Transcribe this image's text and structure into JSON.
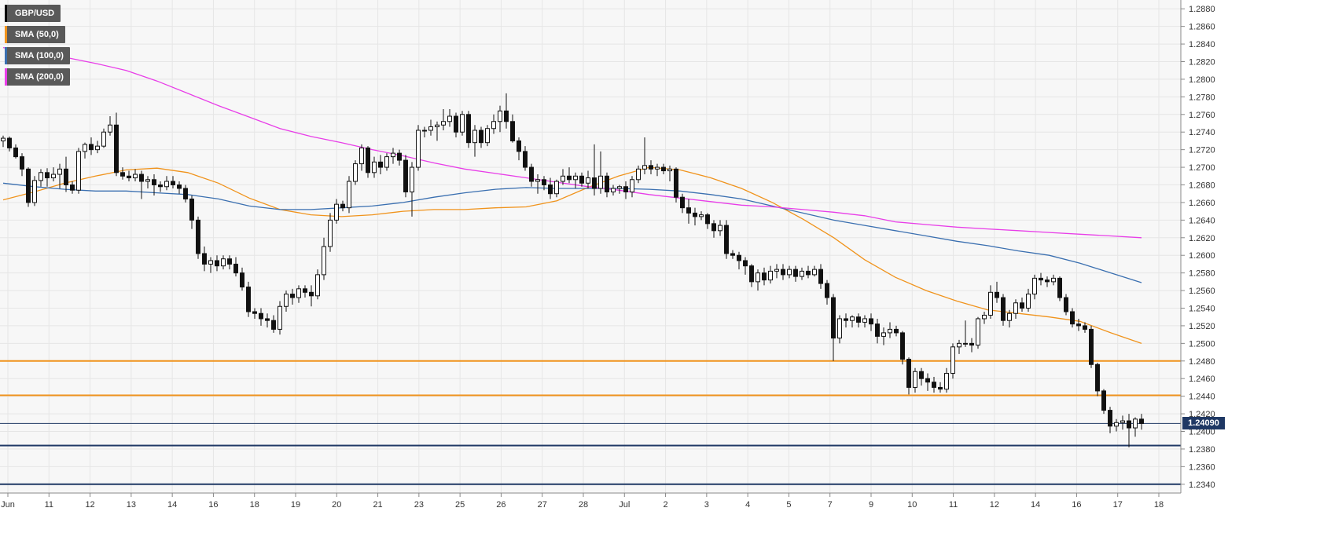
{
  "chart_data": {
    "type": "candlestick",
    "symbol": "GBP/USD",
    "ylim": [
      1.233,
      1.289
    ],
    "y_ticks": [
      "1.2880",
      "1.2860",
      "1.2840",
      "1.2820",
      "1.2800",
      "1.2780",
      "1.2760",
      "1.2740",
      "1.2720",
      "1.2700",
      "1.2680",
      "1.2660",
      "1.2640",
      "1.2620",
      "1.2600",
      "1.2580",
      "1.2560",
      "1.2540",
      "1.2520",
      "1.2500",
      "1.2480",
      "1.2460",
      "1.2440",
      "1.2420",
      "1.2400",
      "1.2380",
      "1.2360",
      "1.2340"
    ],
    "x_ticks": [
      "Jun",
      "11",
      "12",
      "13",
      "14",
      "16",
      "18",
      "19",
      "20",
      "21",
      "23",
      "25",
      "26",
      "27",
      "28",
      "Jul",
      "2",
      "3",
      "4",
      "5",
      "7",
      "9",
      "10",
      "11",
      "12",
      "14",
      "16",
      "17",
      "18"
    ],
    "last_price": "1.24090",
    "last_price_value": 1.2409,
    "last_price_color": "#1f3864",
    "legend": [
      {
        "label": "GBP/USD",
        "color": "#000000"
      },
      {
        "label": "SMA (50,0)",
        "color": "#f0931c"
      },
      {
        "label": "SMA (100,0)",
        "color": "#3a6fb0"
      },
      {
        "label": "SMA (200,0)",
        "color": "#e83ee8"
      }
    ],
    "horizontal_levels": [
      {
        "value": 1.248,
        "color": "#f0931c"
      },
      {
        "value": 1.2441,
        "color": "#f0931c"
      },
      {
        "value": 1.2384,
        "color": "#1f3864"
      },
      {
        "value": 1.234,
        "color": "#1f3864"
      }
    ],
    "series": [
      {
        "name": "SMA (50,0)",
        "color": "#f0931c",
        "values": [
          1.2663,
          1.2672,
          1.2682,
          1.269,
          1.2697,
          1.2699,
          1.2694,
          1.2682,
          1.2665,
          1.2652,
          1.2646,
          1.2644,
          1.2646,
          1.265,
          1.2652,
          1.2652,
          1.2654,
          1.2655,
          1.2662,
          1.2677,
          1.269,
          1.27,
          1.2697,
          1.2688,
          1.2676,
          1.266,
          1.2641,
          1.262,
          1.2595,
          1.2575,
          1.256,
          1.2548,
          1.2538,
          1.2534,
          1.253,
          1.2525,
          1.2512,
          1.25
        ]
      },
      {
        "name": "SMA (100,0)",
        "color": "#3a6fb0",
        "values": [
          1.2682,
          1.2678,
          1.2675,
          1.2673,
          1.2673,
          1.2671,
          1.2669,
          1.2664,
          1.2656,
          1.2652,
          1.2652,
          1.2654,
          1.2656,
          1.266,
          1.2666,
          1.2671,
          1.2675,
          1.2677,
          1.2676,
          1.2676,
          1.2676,
          1.2675,
          1.2673,
          1.2669,
          1.2664,
          1.2656,
          1.2648,
          1.264,
          1.2634,
          1.2628,
          1.2622,
          1.2616,
          1.2611,
          1.2605,
          1.26,
          1.2591,
          1.258,
          1.2569
        ]
      },
      {
        "name": "SMA (200,0)",
        "color": "#e83ee8",
        "values": [
          1.2836,
          1.283,
          1.2825,
          1.2818,
          1.281,
          1.2798,
          1.2784,
          1.277,
          1.2757,
          1.2744,
          1.2735,
          1.2728,
          1.272,
          1.2713,
          1.2705,
          1.2698,
          1.2693,
          1.2688,
          1.2683,
          1.2678,
          1.2674,
          1.2669,
          1.2665,
          1.2661,
          1.2657,
          1.2655,
          1.2652,
          1.2649,
          1.2645,
          1.2638,
          1.2635,
          1.2632,
          1.263,
          1.2628,
          1.2626,
          1.2624,
          1.2622,
          1.262
        ]
      }
    ],
    "candles": [
      [
        1.273,
        1.2736,
        1.2723,
        1.2733
      ],
      [
        1.2733,
        1.2735,
        1.2718,
        1.2722
      ],
      [
        1.2722,
        1.2726,
        1.271,
        1.2712
      ],
      [
        1.2712,
        1.2716,
        1.269,
        1.2698
      ],
      [
        1.2698,
        1.27,
        1.2655,
        1.266
      ],
      [
        1.266,
        1.269,
        1.2656,
        1.2685
      ],
      [
        1.2685,
        1.2698,
        1.2678,
        1.2694
      ],
      [
        1.2694,
        1.2699,
        1.2678,
        1.2688
      ],
      [
        1.2688,
        1.27,
        1.2684,
        1.2692
      ],
      [
        1.2692,
        1.2704,
        1.2676,
        1.2698
      ],
      [
        1.2698,
        1.2712,
        1.2672,
        1.268
      ],
      [
        1.268,
        1.2684,
        1.267,
        1.2674
      ],
      [
        1.2674,
        1.2722,
        1.267,
        1.2718
      ],
      [
        1.2718,
        1.2728,
        1.271,
        1.2726
      ],
      [
        1.2726,
        1.2734,
        1.2714,
        1.272
      ],
      [
        1.272,
        1.273,
        1.2716,
        1.2724
      ],
      [
        1.2724,
        1.2744,
        1.2722,
        1.274
      ],
      [
        1.274,
        1.2758,
        1.2736,
        1.2748
      ],
      [
        1.2748,
        1.2762,
        1.269,
        1.2694
      ],
      [
        1.2694,
        1.27,
        1.2686,
        1.269
      ],
      [
        1.269,
        1.2696,
        1.2684,
        1.2688
      ],
      [
        1.2688,
        1.2698,
        1.2684,
        1.2692
      ],
      [
        1.2692,
        1.2696,
        1.2664,
        1.2684
      ],
      [
        1.2684,
        1.269,
        1.2676,
        1.2686
      ],
      [
        1.2686,
        1.2692,
        1.2668,
        1.268
      ],
      [
        1.268,
        1.2684,
        1.2672,
        1.2678
      ],
      [
        1.2678,
        1.269,
        1.2674,
        1.2684
      ],
      [
        1.2684,
        1.269,
        1.2676,
        1.268
      ],
      [
        1.268,
        1.2684,
        1.267,
        1.2676
      ],
      [
        1.2676,
        1.268,
        1.266,
        1.2664
      ],
      [
        1.2664,
        1.2668,
        1.263,
        1.264
      ],
      [
        1.264,
        1.2644,
        1.2596,
        1.2602
      ],
      [
        1.2602,
        1.261,
        1.2582,
        1.259
      ],
      [
        1.259,
        1.2598,
        1.258,
        1.2594
      ],
      [
        1.2594,
        1.26,
        1.2582,
        1.2588
      ],
      [
        1.2588,
        1.26,
        1.2584,
        1.2596
      ],
      [
        1.2596,
        1.26,
        1.2584,
        1.259
      ],
      [
        1.259,
        1.2598,
        1.2576,
        1.258
      ],
      [
        1.258,
        1.2586,
        1.256,
        1.2564
      ],
      [
        1.2564,
        1.257,
        1.253,
        1.2536
      ],
      [
        1.2536,
        1.254,
        1.2528,
        1.2534
      ],
      [
        1.2534,
        1.254,
        1.252,
        1.2528
      ],
      [
        1.2528,
        1.2534,
        1.2518,
        1.2526
      ],
      [
        1.2526,
        1.2532,
        1.2512,
        1.2516
      ],
      [
        1.2516,
        1.2548,
        1.251,
        1.2542
      ],
      [
        1.2542,
        1.256,
        1.2536,
        1.2556
      ],
      [
        1.2556,
        1.2562,
        1.2544,
        1.2552
      ],
      [
        1.2552,
        1.2566,
        1.2546,
        1.2562
      ],
      [
        1.2562,
        1.2566,
        1.2552,
        1.2558
      ],
      [
        1.2558,
        1.2566,
        1.2542,
        1.2554
      ],
      [
        1.2554,
        1.2584,
        1.255,
        1.2578
      ],
      [
        1.2578,
        1.262,
        1.2572,
        1.261
      ],
      [
        1.261,
        1.2648,
        1.2604,
        1.264
      ],
      [
        1.264,
        1.2664,
        1.2636,
        1.2658
      ],
      [
        1.2658,
        1.2662,
        1.265,
        1.2654
      ],
      [
        1.2654,
        1.269,
        1.2648,
        1.2684
      ],
      [
        1.2684,
        1.2708,
        1.268,
        1.2704
      ],
      [
        1.2704,
        1.2726,
        1.2696,
        1.2722
      ],
      [
        1.2722,
        1.2724,
        1.2688,
        1.2694
      ],
      [
        1.2694,
        1.2712,
        1.2688,
        1.2706
      ],
      [
        1.2706,
        1.2714,
        1.2692,
        1.27
      ],
      [
        1.27,
        1.2716,
        1.2696,
        1.2712
      ],
      [
        1.2712,
        1.2722,
        1.2704,
        1.2716
      ],
      [
        1.2716,
        1.272,
        1.2702,
        1.2708
      ],
      [
        1.2708,
        1.2714,
        1.2666,
        1.2672
      ],
      [
        1.2672,
        1.2706,
        1.2644,
        1.27
      ],
      [
        1.27,
        1.2748,
        1.2696,
        1.2742
      ],
      [
        1.2742,
        1.2746,
        1.2734,
        1.2742
      ],
      [
        1.2742,
        1.2754,
        1.2736,
        1.2746
      ],
      [
        1.2746,
        1.2752,
        1.273,
        1.2748
      ],
      [
        1.2748,
        1.2766,
        1.2742,
        1.2752
      ],
      [
        1.2752,
        1.2766,
        1.2746,
        1.2758
      ],
      [
        1.2758,
        1.2762,
        1.2734,
        1.274
      ],
      [
        1.274,
        1.2764,
        1.2736,
        1.276
      ],
      [
        1.276,
        1.2764,
        1.2722,
        1.2728
      ],
      [
        1.2728,
        1.2748,
        1.2712,
        1.2742
      ],
      [
        1.2742,
        1.2746,
        1.2722,
        1.2728
      ],
      [
        1.2728,
        1.2748,
        1.2724,
        1.2744
      ],
      [
        1.2744,
        1.276,
        1.2738,
        1.2752
      ],
      [
        1.2752,
        1.277,
        1.274,
        1.2764
      ],
      [
        1.2764,
        1.2784,
        1.2744,
        1.2752
      ],
      [
        1.2752,
        1.276,
        1.2728,
        1.273
      ],
      [
        1.273,
        1.2734,
        1.2708,
        1.2718
      ],
      [
        1.2718,
        1.2724,
        1.2696,
        1.27
      ],
      [
        1.27,
        1.2704,
        1.2678,
        1.2684
      ],
      [
        1.2684,
        1.2692,
        1.267,
        1.2686
      ],
      [
        1.2686,
        1.269,
        1.2674,
        1.268
      ],
      [
        1.268,
        1.2688,
        1.2664,
        1.267
      ],
      [
        1.267,
        1.2686,
        1.2666,
        1.2684
      ],
      [
        1.2684,
        1.2698,
        1.268,
        1.269
      ],
      [
        1.269,
        1.27,
        1.2682,
        1.2686
      ],
      [
        1.2686,
        1.2694,
        1.2676,
        1.269
      ],
      [
        1.269,
        1.2694,
        1.2678,
        1.2682
      ],
      [
        1.2682,
        1.2696,
        1.2676,
        1.2688
      ],
      [
        1.2688,
        1.2726,
        1.2668,
        1.2676
      ],
      [
        1.2676,
        1.2718,
        1.267,
        1.269
      ],
      [
        1.269,
        1.2694,
        1.2666,
        1.2672
      ],
      [
        1.2672,
        1.268,
        1.2668,
        1.2676
      ],
      [
        1.2676,
        1.268,
        1.267,
        1.2678
      ],
      [
        1.2678,
        1.2684,
        1.2664,
        1.2672
      ],
      [
        1.2672,
        1.269,
        1.2666,
        1.2686
      ],
      [
        1.2686,
        1.2702,
        1.2682,
        1.2698
      ],
      [
        1.2698,
        1.2734,
        1.2692,
        1.2702
      ],
      [
        1.2702,
        1.2708,
        1.2692,
        1.2698
      ],
      [
        1.2698,
        1.2704,
        1.269,
        1.27
      ],
      [
        1.27,
        1.2704,
        1.2692,
        1.2696
      ],
      [
        1.2696,
        1.2702,
        1.2684,
        1.2698
      ],
      [
        1.2698,
        1.27,
        1.266,
        1.2666
      ],
      [
        1.2666,
        1.267,
        1.2648,
        1.2654
      ],
      [
        1.2654,
        1.2664,
        1.2636,
        1.2648
      ],
      [
        1.2648,
        1.2654,
        1.2634,
        1.2644
      ],
      [
        1.2644,
        1.265,
        1.264,
        1.2646
      ],
      [
        1.2646,
        1.2648,
        1.263,
        1.2636
      ],
      [
        1.2636,
        1.264,
        1.262,
        1.2628
      ],
      [
        1.2628,
        1.264,
        1.2622,
        1.2634
      ],
      [
        1.2634,
        1.264,
        1.2596,
        1.2602
      ],
      [
        1.2602,
        1.2606,
        1.2596,
        1.26
      ],
      [
        1.26,
        1.2604,
        1.2584,
        1.2594
      ],
      [
        1.2594,
        1.2598,
        1.2578,
        1.2588
      ],
      [
        1.2588,
        1.259,
        1.2564,
        1.257
      ],
      [
        1.257,
        1.2584,
        1.256,
        1.258
      ],
      [
        1.258,
        1.2586,
        1.2566,
        1.2572
      ],
      [
        1.2572,
        1.2588,
        1.2568,
        1.2582
      ],
      [
        1.2582,
        1.259,
        1.2574,
        1.2584
      ],
      [
        1.2584,
        1.259,
        1.2572,
        1.2578
      ],
      [
        1.2578,
        1.2588,
        1.2574,
        1.2584
      ],
      [
        1.2584,
        1.2588,
        1.257,
        1.2576
      ],
      [
        1.2576,
        1.2586,
        1.2572,
        1.2582
      ],
      [
        1.2582,
        1.2588,
        1.2574,
        1.2578
      ],
      [
        1.2578,
        1.2588,
        1.2576,
        1.2584
      ],
      [
        1.2584,
        1.259,
        1.2562,
        1.2568
      ],
      [
        1.2568,
        1.2572,
        1.2544,
        1.2552
      ],
      [
        1.2552,
        1.2556,
        1.248,
        1.2506
      ],
      [
        1.2506,
        1.2532,
        1.25,
        1.2528
      ],
      [
        1.2528,
        1.2534,
        1.2518,
        1.2526
      ],
      [
        1.2526,
        1.2532,
        1.2518,
        1.253
      ],
      [
        1.253,
        1.2534,
        1.2518,
        1.2524
      ],
      [
        1.2524,
        1.2532,
        1.2518,
        1.2528
      ],
      [
        1.2528,
        1.2534,
        1.2514,
        1.2522
      ],
      [
        1.2522,
        1.2528,
        1.25,
        1.2508
      ],
      [
        1.2508,
        1.2518,
        1.2498,
        1.2512
      ],
      [
        1.2512,
        1.2524,
        1.2506,
        1.2516
      ],
      [
        1.2516,
        1.252,
        1.2508,
        1.2512
      ],
      [
        1.2512,
        1.2514,
        1.2476,
        1.2482
      ],
      [
        1.2482,
        1.2484,
        1.2442,
        1.245
      ],
      [
        1.245,
        1.2472,
        1.2444,
        1.2468
      ],
      [
        1.2468,
        1.2472,
        1.2452,
        1.246
      ],
      [
        1.246,
        1.2466,
        1.2446,
        1.2456
      ],
      [
        1.2456,
        1.2462,
        1.2444,
        1.245
      ],
      [
        1.245,
        1.2456,
        1.2444,
        1.2448
      ],
      [
        1.2448,
        1.2472,
        1.2444,
        1.2466
      ],
      [
        1.2466,
        1.25,
        1.246,
        1.2496
      ],
      [
        1.2496,
        1.2504,
        1.2488,
        1.25
      ],
      [
        1.25,
        1.2526,
        1.2496,
        1.25
      ],
      [
        1.25,
        1.2506,
        1.249,
        1.2498
      ],
      [
        1.2498,
        1.253,
        1.2494,
        1.2528
      ],
      [
        1.2528,
        1.2536,
        1.2522,
        1.2532
      ],
      [
        1.2532,
        1.2566,
        1.2528,
        1.2558
      ],
      [
        1.2558,
        1.257,
        1.2546,
        1.2552
      ],
      [
        1.2552,
        1.2556,
        1.252,
        1.2526
      ],
      [
        1.2526,
        1.2538,
        1.2518,
        1.2534
      ],
      [
        1.2534,
        1.255,
        1.2528,
        1.2546
      ],
      [
        1.2546,
        1.2552,
        1.2536,
        1.254
      ],
      [
        1.254,
        1.2562,
        1.2536,
        1.2556
      ],
      [
        1.2556,
        1.2578,
        1.255,
        1.2574
      ],
      [
        1.2574,
        1.258,
        1.2566,
        1.2572
      ],
      [
        1.2572,
        1.2576,
        1.2564,
        1.257
      ],
      [
        1.257,
        1.2578,
        1.2566,
        1.2574
      ],
      [
        1.2574,
        1.2576,
        1.2548,
        1.2552
      ],
      [
        1.2552,
        1.2556,
        1.2532,
        1.2536
      ],
      [
        1.2536,
        1.254,
        1.2518,
        1.2522
      ],
      [
        1.2522,
        1.2528,
        1.2514,
        1.252
      ],
      [
        1.252,
        1.2524,
        1.2512,
        1.2516
      ],
      [
        1.2516,
        1.252,
        1.2472,
        1.2476
      ],
      [
        1.2476,
        1.2478,
        1.244,
        1.2446
      ],
      [
        1.2446,
        1.2448,
        1.242,
        1.2424
      ],
      [
        1.2424,
        1.2428,
        1.2398,
        1.2406
      ],
      [
        1.2406,
        1.2414,
        1.24,
        1.241
      ],
      [
        1.241,
        1.2418,
        1.2402,
        1.2412
      ],
      [
        1.2412,
        1.242,
        1.2382,
        1.2404
      ],
      [
        1.2404,
        1.2416,
        1.2394,
        1.2414
      ],
      [
        1.2414,
        1.242,
        1.2402,
        1.2409
      ]
    ]
  }
}
